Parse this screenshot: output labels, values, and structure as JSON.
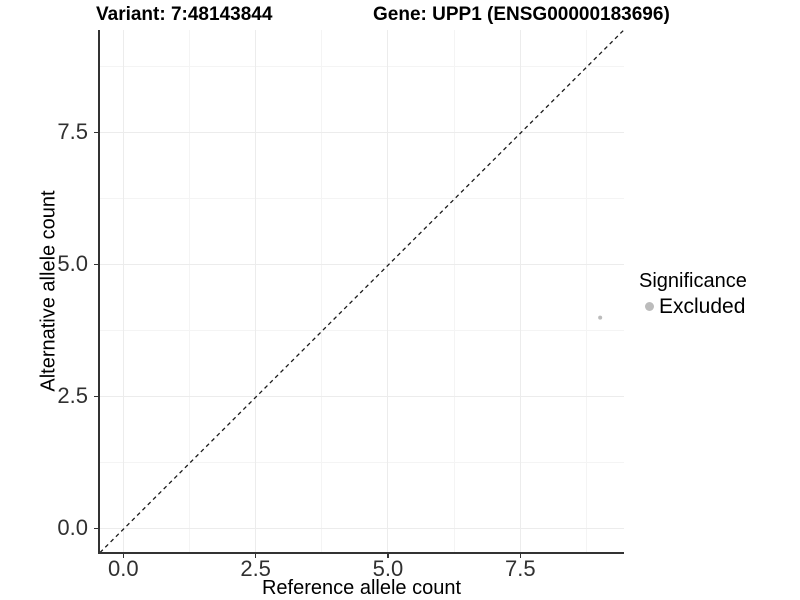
{
  "header": {
    "variant_title": "Variant: 7:48143844",
    "gene_title": "Gene: UPP1 (ENSG00000183696)"
  },
  "axes": {
    "x": {
      "title": "Reference allele count",
      "tick_labels": [
        "0.0",
        "2.5",
        "5.0",
        "7.5"
      ]
    },
    "y": {
      "title": "Alternative allele count",
      "tick_labels": [
        "0.0",
        "2.5",
        "5.0",
        "7.5"
      ]
    }
  },
  "legend": {
    "title": "Significance",
    "items": [
      {
        "label": "Excluded",
        "color": "#bcbcbc"
      }
    ]
  },
  "colors": {
    "point": "#bcbcbc",
    "grid_major": "#ececec",
    "grid_minor": "#f4f4f4",
    "axis_line": "#333333",
    "dashed_line": "#1a1a1a"
  },
  "chart_data": {
    "type": "scatter",
    "title": "Variant: 7:48143844   |   Gene: UPP1 (ENSG00000183696)",
    "xlabel": "Reference allele count",
    "ylabel": "Alternative allele count",
    "xlim": [
      -0.45,
      9.45
    ],
    "ylim": [
      -0.45,
      9.45
    ],
    "xticks": [
      0,
      2.5,
      5,
      7.5
    ],
    "yticks": [
      0,
      2.5,
      5,
      7.5
    ],
    "grid": "major+minor",
    "legend_position": "right",
    "series": [
      {
        "name": "Excluded",
        "color": "#bcbcbc",
        "points": [
          {
            "x": 9,
            "y": 4
          }
        ]
      }
    ],
    "annotations": [
      {
        "type": "abline",
        "slope": 1,
        "intercept": 0,
        "linetype": "dashed",
        "color": "#1a1a1a"
      }
    ]
  }
}
